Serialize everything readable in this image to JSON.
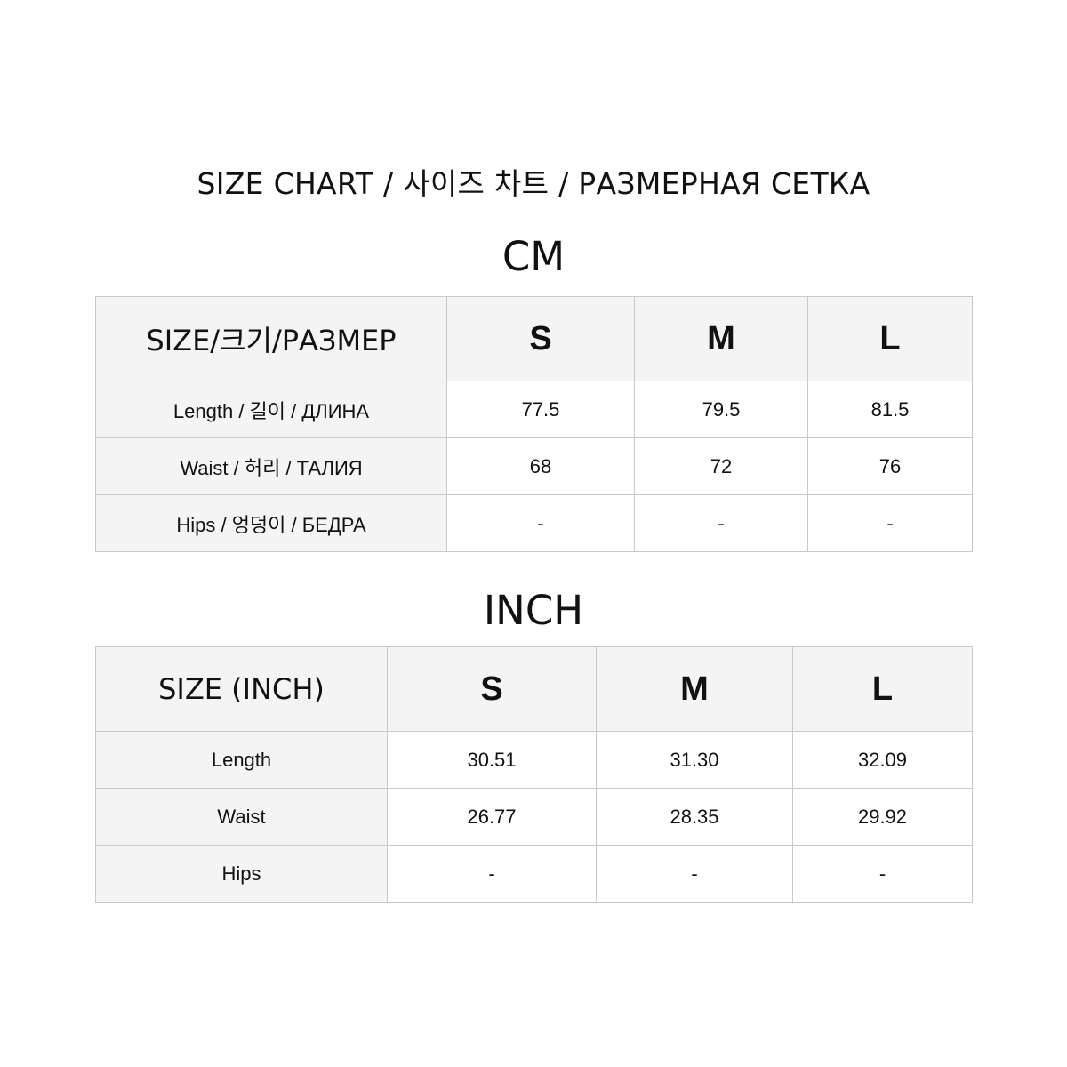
{
  "title": "SIZE CHART / 사이즈 차트 / РАЗМЕРНАЯ СЕТКА",
  "cm": {
    "unit": "CM",
    "header": [
      "SIZE/크기/РАЗМЕР",
      "S",
      "M",
      "L"
    ],
    "rows": [
      [
        "Length  / 길이  /  ДЛИНА",
        "77.5",
        "79.5",
        "81.5"
      ],
      [
        "Waist  / 허리  /  ТАЛИЯ",
        "68",
        "72",
        "76"
      ],
      [
        "Hips  /  엉덩이  /  БЕДРА",
        "-",
        "-",
        "-"
      ]
    ]
  },
  "inch": {
    "unit": "INCH",
    "header": [
      "SIZE (INCH)",
      "S",
      "M",
      "L"
    ],
    "rows": [
      [
        "Length",
        "30.51",
        "31.30",
        "32.09"
      ],
      [
        "Waist",
        "26.77",
        "28.35",
        "29.92"
      ],
      [
        "Hips",
        "-",
        "-",
        "-"
      ]
    ]
  }
}
